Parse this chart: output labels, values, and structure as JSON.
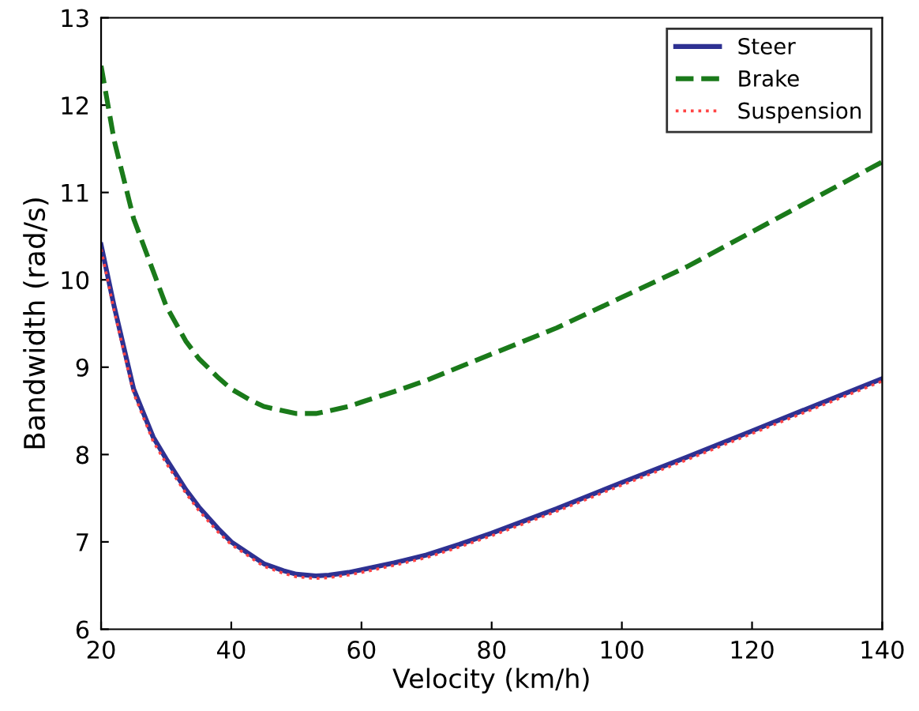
{
  "chart_data": {
    "type": "line",
    "xlabel": "Velocity (km/h)",
    "ylabel": "Bandwidth (rad/s)",
    "x": [
      20,
      22,
      25,
      28,
      30,
      33,
      35,
      38,
      40,
      43,
      45,
      48,
      50,
      53,
      55,
      58,
      60,
      65,
      70,
      75,
      80,
      90,
      100,
      110,
      120,
      130,
      140
    ],
    "series": [
      {
        "name": "Steer",
        "color": "#2e3192",
        "line_style": "solid",
        "values": [
          10.4,
          9.7,
          8.75,
          8.2,
          7.95,
          7.6,
          7.4,
          7.15,
          7.0,
          6.85,
          6.75,
          6.67,
          6.63,
          6.61,
          6.62,
          6.65,
          6.68,
          6.76,
          6.85,
          6.97,
          7.1,
          7.38,
          7.68,
          7.97,
          8.27,
          8.57,
          8.87
        ]
      },
      {
        "name": "Brake",
        "color": "#1a7a1a",
        "line_style": "dashed",
        "values": [
          12.45,
          11.6,
          10.7,
          10.1,
          9.7,
          9.3,
          9.1,
          8.88,
          8.75,
          8.62,
          8.55,
          8.5,
          8.47,
          8.47,
          8.5,
          8.55,
          8.6,
          8.72,
          8.85,
          9.0,
          9.15,
          9.45,
          9.8,
          10.15,
          10.55,
          10.95,
          11.35
        ]
      },
      {
        "name": "Suspension",
        "color": "#ff4444",
        "line_style": "dotted",
        "values": [
          10.35,
          9.65,
          8.7,
          8.15,
          7.9,
          7.56,
          7.36,
          7.11,
          6.97,
          6.82,
          6.72,
          6.64,
          6.6,
          6.58,
          6.59,
          6.62,
          6.65,
          6.73,
          6.82,
          6.94,
          7.07,
          7.35,
          7.65,
          7.94,
          8.24,
          8.54,
          8.84
        ]
      }
    ],
    "xlim": [
      20,
      140
    ],
    "ylim": [
      6,
      13
    ],
    "xticks": [
      20,
      40,
      60,
      80,
      100,
      120,
      140
    ],
    "yticks": [
      6,
      7,
      8,
      9,
      10,
      11,
      12,
      13
    ],
    "grid": false,
    "legend": "top right"
  }
}
